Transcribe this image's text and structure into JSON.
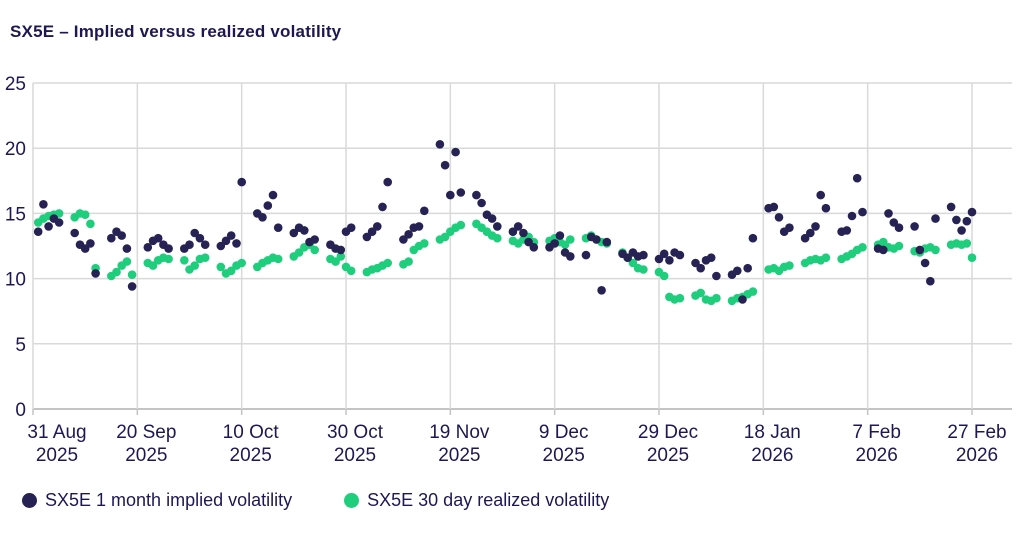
{
  "header": {
    "title": "SX5E – Implied versus realized volatility"
  },
  "colors": {
    "implied": "#262253",
    "realized": "#1fce7c",
    "text": "#1e1852",
    "gridline": "#d9d9d9",
    "axis_line": "#c4c4c4",
    "background": "#ffffff"
  },
  "legend": {
    "items": [
      {
        "label": "SX5E 1 month implied volatility",
        "color": "#262253"
      },
      {
        "label": "SX5E 30 day realized volatility",
        "color": "#1fce7c"
      }
    ]
  },
  "chart_data": {
    "type": "scatter",
    "title": "SX5E – Implied versus realized volatility",
    "xlabel": "",
    "ylabel": "",
    "grid": true,
    "legend_position": "bottom",
    "y_axis": {
      "ticks": [
        0,
        5,
        10,
        15,
        20,
        25
      ],
      "range": [
        0,
        25
      ]
    },
    "x_axis": {
      "range_days": [
        0,
        188
      ],
      "tick_days": [
        0,
        20,
        40,
        60,
        80,
        100,
        120,
        140,
        160,
        180
      ],
      "tick_labels": [
        [
          "31 Aug",
          "2025"
        ],
        [
          "20 Sep",
          "2025"
        ],
        [
          "10 Oct",
          "2025"
        ],
        [
          "30 Oct",
          "2025"
        ],
        [
          "19 Nov",
          "2025"
        ],
        [
          "9 Dec",
          "2025"
        ],
        [
          "29 Dec",
          "2025"
        ],
        [
          "18 Jan",
          "2026"
        ],
        [
          "7 Feb",
          "2026"
        ],
        [
          "27 Feb",
          "2026"
        ]
      ]
    },
    "point_schedule": {
      "description": "daily points, 5 trading days per week; day offset = start_day + week*week_stride + day_in_week",
      "start_day": 1,
      "week_stride": 7,
      "points_per_week": 5,
      "weeks": 26
    },
    "series": [
      {
        "name": "SX5E 1 month implied volatility",
        "color": "#262253",
        "weekly_values": [
          [
            13.6,
            15.7,
            14.0,
            14.6,
            14.3
          ],
          [
            13.5,
            12.6,
            12.3,
            12.7,
            10.4
          ],
          [
            13.1,
            13.6,
            13.3,
            12.3,
            9.4
          ],
          [
            12.4,
            12.9,
            13.1,
            12.6,
            12.3
          ],
          [
            12.3,
            12.6,
            13.5,
            13.1,
            12.6
          ],
          [
            12.5,
            12.9,
            13.3,
            12.7,
            17.4
          ],
          [
            15.0,
            14.7,
            15.6,
            16.4,
            13.9
          ],
          [
            13.5,
            13.9,
            13.7,
            12.8,
            13.0
          ],
          [
            12.6,
            12.3,
            12.2,
            13.6,
            13.9
          ],
          [
            13.2,
            13.6,
            14.0,
            15.5,
            17.4
          ],
          [
            13.0,
            13.4,
            13.9,
            14.0,
            15.2
          ],
          [
            20.3,
            18.7,
            16.4,
            19.7,
            16.6
          ],
          [
            16.4,
            15.8,
            14.9,
            14.6,
            14.0
          ],
          [
            13.6,
            14.0,
            13.5,
            12.8,
            12.4
          ],
          [
            12.4,
            12.7,
            13.3,
            12.0,
            11.7
          ],
          [
            11.8,
            13.2,
            13.0,
            9.1,
            12.8
          ],
          [
            11.9,
            11.6,
            12.0,
            11.7,
            11.8
          ],
          [
            11.5,
            11.9,
            11.4,
            12.0,
            11.8
          ],
          [
            11.2,
            10.8,
            11.4,
            11.6,
            10.2
          ],
          [
            10.3,
            10.6,
            8.4,
            10.8,
            13.1
          ],
          [
            15.4,
            15.5,
            14.7,
            13.6,
            13.9
          ],
          [
            13.1,
            13.5,
            14.0,
            16.4,
            15.4
          ],
          [
            13.6,
            13.7,
            14.8,
            17.7,
            15.1
          ],
          [
            12.3,
            12.2,
            15.0,
            14.3,
            13.9
          ],
          [
            14.0,
            12.2,
            11.2,
            9.8,
            14.6
          ],
          [
            15.5,
            14.5,
            13.7,
            14.4,
            15.1
          ]
        ]
      },
      {
        "name": "SX5E 30 day realized volatility",
        "color": "#1fce7c",
        "weekly_values": [
          [
            14.3,
            14.6,
            14.8,
            14.9,
            15.0
          ],
          [
            14.7,
            15.0,
            14.9,
            14.2,
            10.8
          ],
          [
            10.2,
            10.5,
            11.0,
            11.3,
            10.3
          ],
          [
            11.2,
            11.0,
            11.4,
            11.6,
            11.5
          ],
          [
            11.4,
            10.7,
            11.0,
            11.5,
            11.6
          ],
          [
            10.9,
            10.4,
            10.6,
            11.0,
            11.2
          ],
          [
            10.9,
            11.2,
            11.4,
            11.6,
            11.5
          ],
          [
            11.7,
            12.0,
            12.4,
            12.6,
            12.2
          ],
          [
            11.5,
            11.3,
            11.7,
            10.9,
            10.6
          ],
          [
            10.5,
            10.7,
            10.8,
            11.0,
            11.2
          ],
          [
            11.1,
            11.3,
            12.2,
            12.5,
            12.7
          ],
          [
            13.0,
            13.2,
            13.6,
            13.9,
            14.1
          ],
          [
            14.2,
            13.9,
            13.6,
            13.3,
            13.1
          ],
          [
            12.9,
            12.7,
            13.0,
            13.2,
            12.8
          ],
          [
            12.9,
            13.1,
            12.8,
            12.6,
            13.0
          ],
          [
            13.1,
            13.3,
            13.0,
            12.8,
            12.7
          ],
          [
            12.0,
            11.6,
            11.2,
            10.8,
            10.7
          ],
          [
            10.5,
            10.2,
            8.6,
            8.4,
            8.5
          ],
          [
            8.7,
            8.9,
            8.4,
            8.3,
            8.5
          ],
          [
            8.3,
            8.5,
            8.6,
            8.8,
            9.0
          ],
          [
            10.7,
            10.8,
            10.6,
            10.9,
            11.0
          ],
          [
            11.2,
            11.4,
            11.5,
            11.4,
            11.6
          ],
          [
            11.5,
            11.7,
            11.9,
            12.2,
            12.4
          ],
          [
            12.6,
            12.8,
            12.4,
            12.3,
            12.5
          ],
          [
            12.1,
            12.0,
            12.3,
            12.4,
            12.2
          ],
          [
            12.6,
            12.7,
            12.6,
            12.7,
            11.6
          ]
        ]
      }
    ]
  }
}
